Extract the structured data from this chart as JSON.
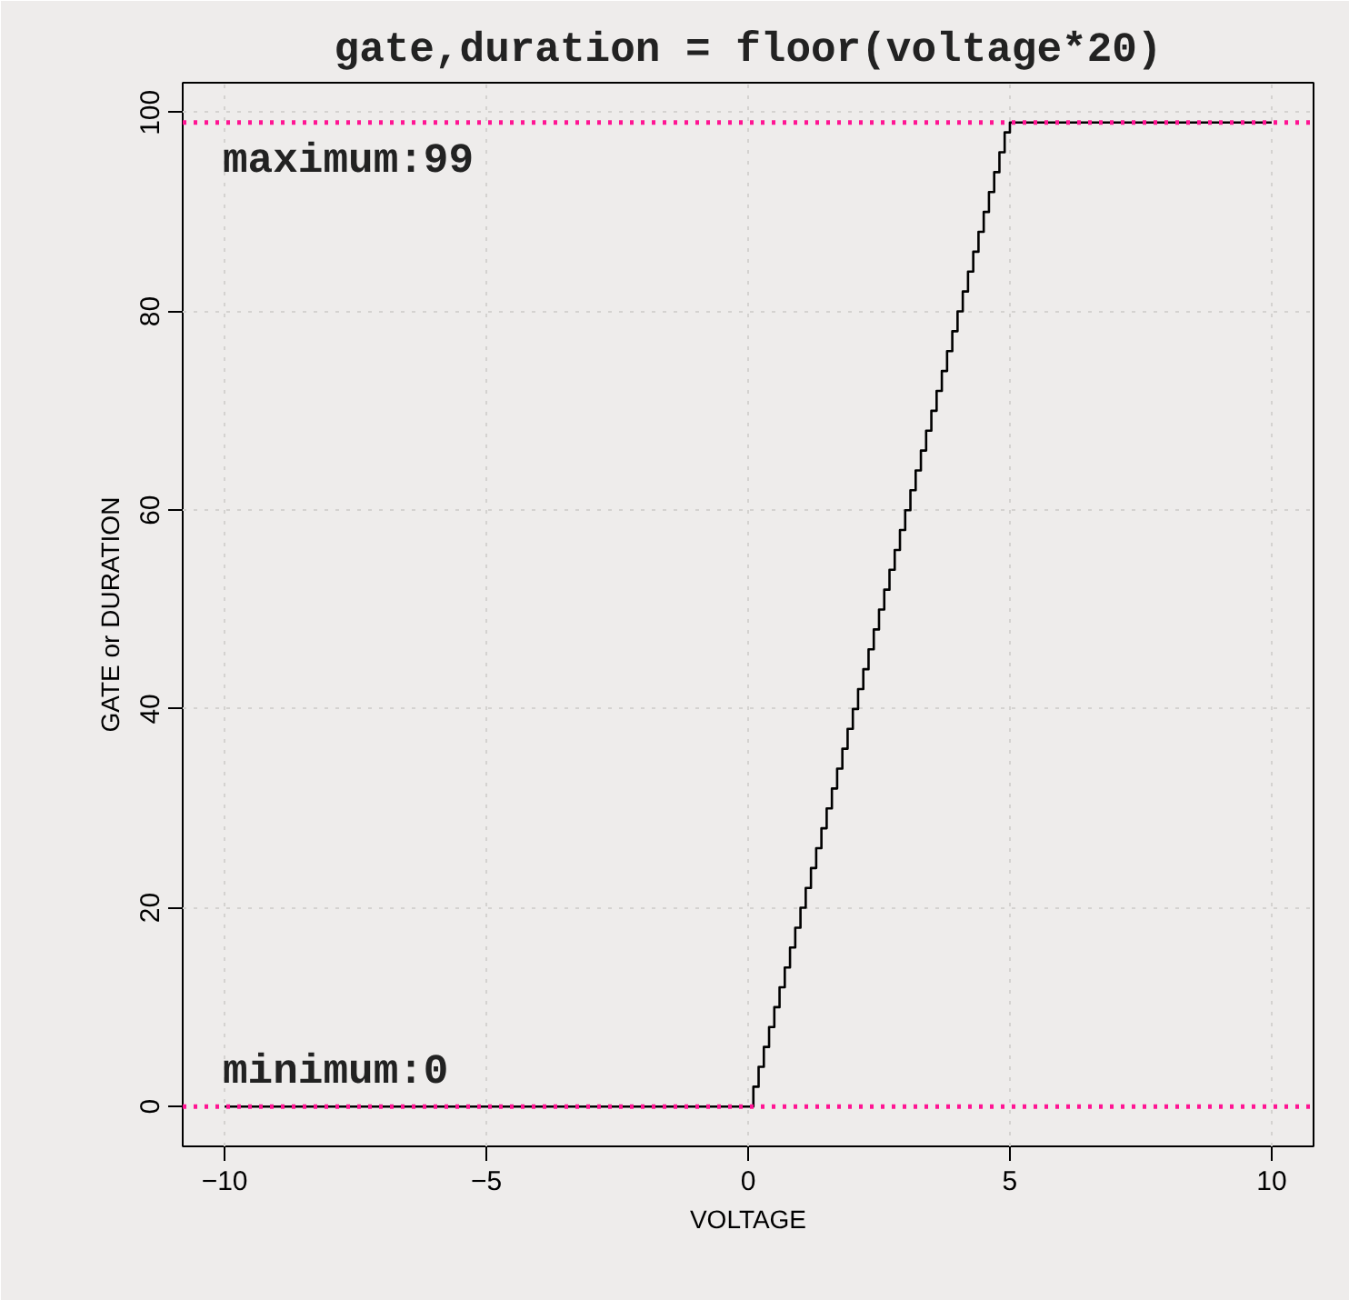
{
  "chart_data": {
    "type": "step",
    "title": "gate,duration = floor(voltage*20)",
    "xlabel": "VOLTAGE",
    "ylabel": "GATE or DURATION",
    "x": [
      -10,
      0,
      0.1,
      0.2,
      0.3,
      0.4,
      0.5,
      0.6,
      0.7,
      0.8,
      0.9,
      1.0,
      1.1,
      1.2,
      1.3,
      1.4,
      1.5,
      1.6,
      1.7,
      1.8,
      1.9,
      2.0,
      2.1,
      2.2,
      2.3,
      2.4,
      2.5,
      2.6,
      2.7,
      2.8,
      2.9,
      3.0,
      3.1,
      3.2,
      3.3,
      3.4,
      3.5,
      3.6,
      3.7,
      3.8,
      3.9,
      4.0,
      4.1,
      4.2,
      4.3,
      4.4,
      4.5,
      4.6,
      4.7,
      4.8,
      4.9,
      5.0,
      10
    ],
    "series": [
      {
        "color": "#000000",
        "values": [
          0,
          0,
          2,
          4,
          6,
          8,
          10,
          12,
          14,
          16,
          18,
          20,
          22,
          24,
          26,
          28,
          30,
          32,
          34,
          36,
          38,
          40,
          42,
          44,
          46,
          48,
          50,
          52,
          54,
          56,
          58,
          60,
          62,
          64,
          66,
          68,
          70,
          72,
          74,
          76,
          78,
          80,
          82,
          84,
          86,
          88,
          90,
          92,
          94,
          96,
          98,
          99,
          99
        ]
      }
    ],
    "xlim": [
      -10.8,
      10.8
    ],
    "ylim": [
      -4,
      103
    ],
    "xticks": [
      {
        "value": -10,
        "label": "−10"
      },
      {
        "value": -5,
        "label": "−5"
      },
      0,
      5,
      10
    ],
    "yticks": [
      0,
      20,
      40,
      60,
      80,
      100
    ],
    "ref_lines": [
      {
        "axis": "y",
        "value": 99,
        "label": "maximum:99",
        "color": "#ff1493",
        "line_style": "dotted"
      },
      {
        "axis": "y",
        "value": 0,
        "label": "minimum:0",
        "color": "#ff1493",
        "line_style": "dotted"
      }
    ],
    "grid": true,
    "marker": "none",
    "line_style": "solid"
  }
}
